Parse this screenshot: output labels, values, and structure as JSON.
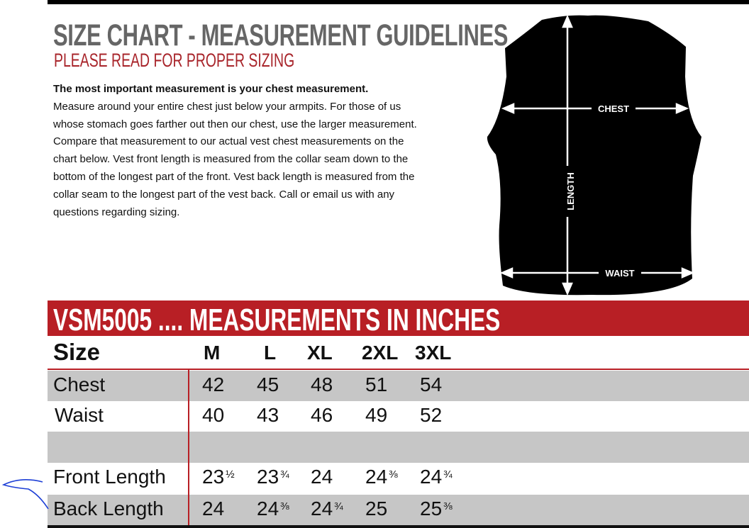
{
  "header": {
    "title": "SIZE CHART - MEASUREMENT GUIDELINES",
    "subtitle": "PLEASE READ FOR PROPER SIZING"
  },
  "intro": {
    "lead": "The most important measurement is your chest measurement.",
    "body": "Measure around your entire chest just below your armpits.  For those of us whose stomach goes farther out then our chest, use the larger measurement. Compare that measurement to our actual vest chest measurements on the chart below.  Vest front length is measured from the collar seam down to the bottom of the longest part of the front. Vest back length is measured from the collar seam to the longest part of the vest back.  Call or email us with any questions regarding sizing."
  },
  "diagram": {
    "chest_label": "CHEST",
    "length_label": "LENGTH",
    "waist_label": "WAIST"
  },
  "table": {
    "banner": "VSM5005 .... MEASUREMENTS IN INCHES",
    "size_label": "Size",
    "sizes": [
      "M",
      "L",
      "XL",
      "2XL",
      "3XL"
    ],
    "rows": [
      {
        "label": "Chest",
        "values": [
          [
            "42",
            ""
          ],
          [
            "45",
            ""
          ],
          [
            "48",
            ""
          ],
          [
            "51",
            ""
          ],
          [
            "54",
            ""
          ]
        ]
      },
      {
        "label": "Waist",
        "values": [
          [
            "40",
            ""
          ],
          [
            "43",
            ""
          ],
          [
            "46",
            ""
          ],
          [
            "49",
            ""
          ],
          [
            "52",
            ""
          ]
        ]
      },
      {
        "label": "",
        "values": [
          [
            "",
            ""
          ],
          [
            "",
            ""
          ],
          [
            "",
            ""
          ],
          [
            "",
            ""
          ],
          [
            "",
            ""
          ]
        ]
      },
      {
        "label": "Front Length",
        "values": [
          [
            "23",
            "½"
          ],
          [
            "23",
            "¾"
          ],
          [
            "24",
            ""
          ],
          [
            "24",
            "⅜"
          ],
          [
            "24",
            "¾"
          ]
        ]
      },
      {
        "label": "Back Length",
        "values": [
          [
            "24",
            ""
          ],
          [
            "24",
            "⅜"
          ],
          [
            "24",
            "¾"
          ],
          [
            "25",
            ""
          ],
          [
            "25",
            "⅜"
          ]
        ]
      }
    ]
  },
  "colors": {
    "accent_red": "#b81f25",
    "title_gray": "#666666",
    "row_gray": "#c6c6c6",
    "pen_blue": "#1d3fd6"
  }
}
